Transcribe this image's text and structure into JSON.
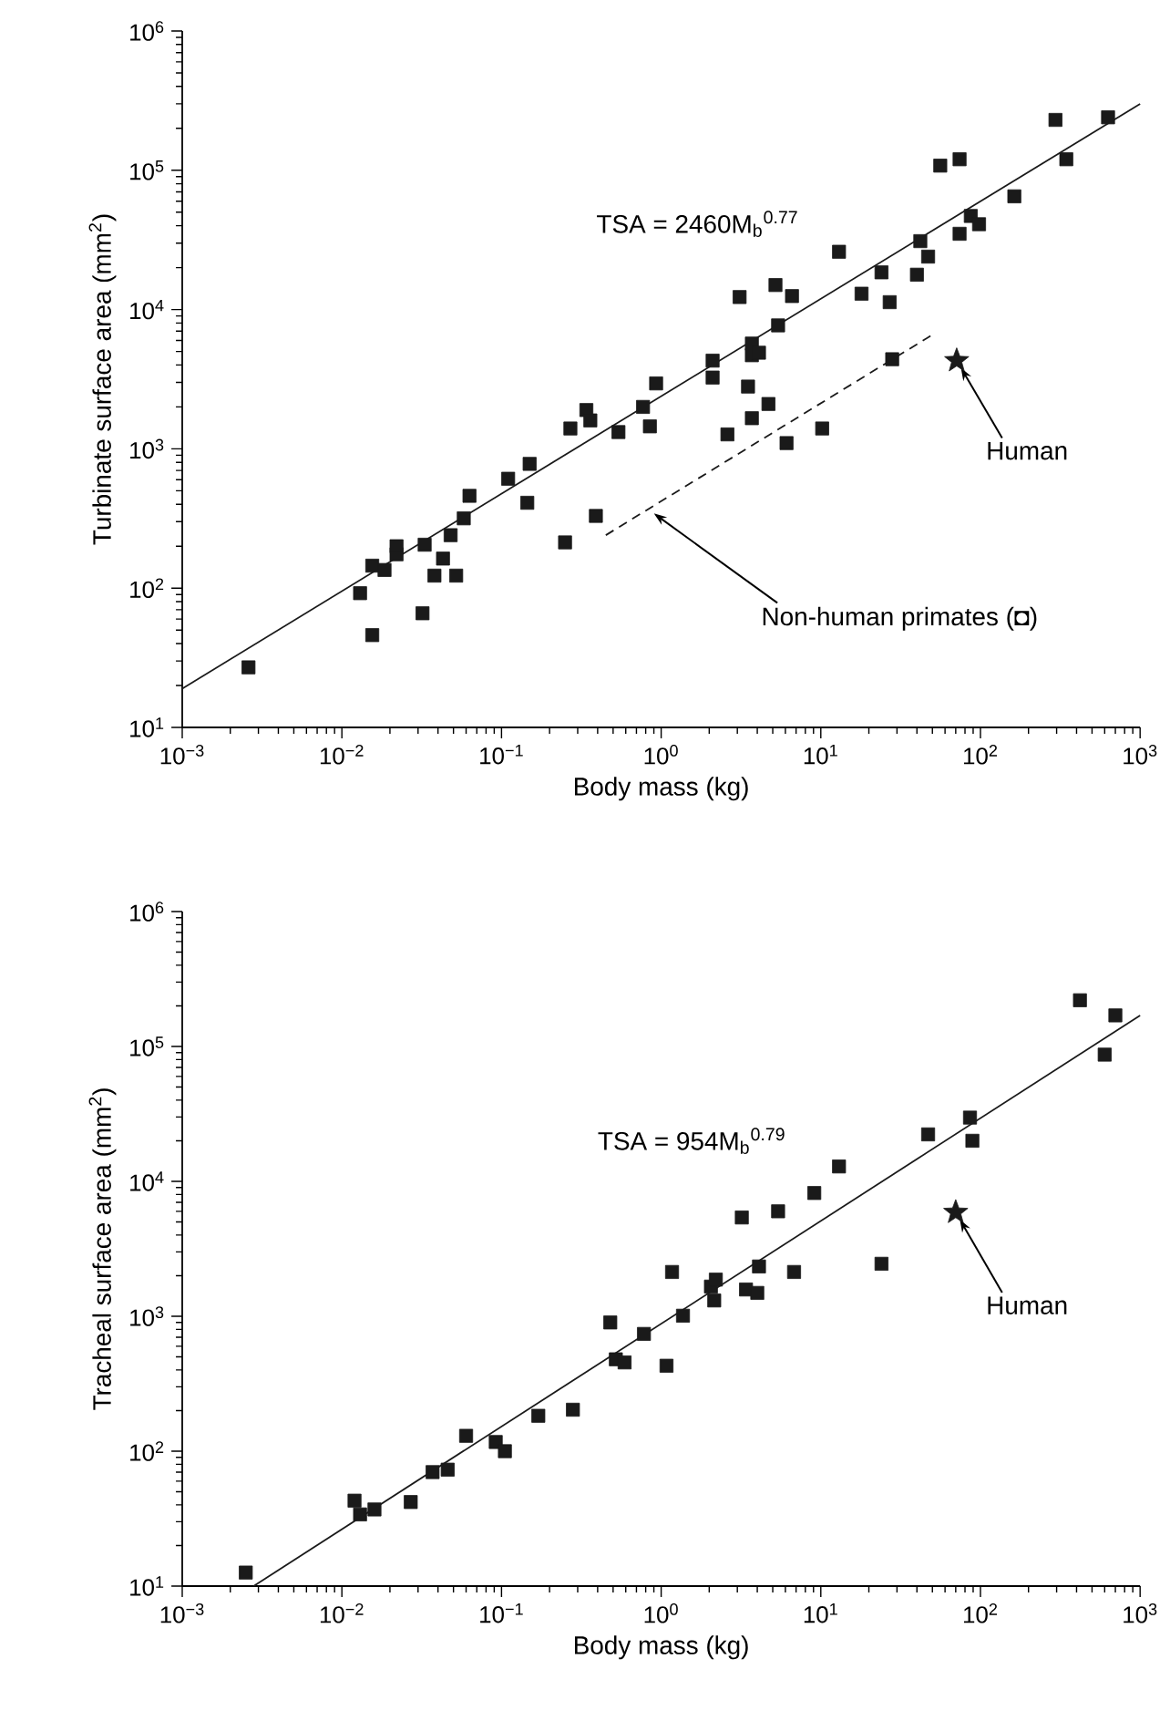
{
  "chart_data": [
    {
      "type": "scatter",
      "xlabel": "Body mass (kg)",
      "ylabel": "Turbinate surface area (mm$^{2}$)",
      "log": "xy",
      "xlim": [
        0.001,
        1000
      ],
      "ylim": [
        10,
        1000000
      ],
      "xticks": [
        {
          "value": 0.001,
          "label": "10$^{−3}$"
        },
        {
          "value": 0.01,
          "label": "10$^{−2}$"
        },
        {
          "value": 0.1,
          "label": "10$^{−1}$"
        },
        {
          "value": 1,
          "label": "10$^{0}$"
        },
        {
          "value": 10,
          "label": "10$^{1}$"
        },
        {
          "value": 100,
          "label": "10$^{2}$"
        },
        {
          "value": 1000,
          "label": "10$^{3}$"
        }
      ],
      "yticks": [
        {
          "value": 10,
          "label": "10$^{1}$"
        },
        {
          "value": 100,
          "label": "10$^{2}$"
        },
        {
          "value": 1000,
          "label": "10$^{3}$"
        },
        {
          "value": 10000,
          "label": "10$^{4}$"
        },
        {
          "value": 100000,
          "label": "10$^{5}$"
        },
        {
          "value": 1000000,
          "label": "10$^{6}$"
        }
      ],
      "series": [
        {
          "marker": "square",
          "color": "#1a1a1a",
          "x": [
            0.0026,
            0.013,
            0.0155,
            0.0155,
            0.0185,
            0.022,
            0.022,
            0.032,
            0.033,
            0.038,
            0.043,
            0.048,
            0.052,
            0.058,
            0.063,
            0.11,
            0.145,
            0.15,
            0.25,
            0.27,
            0.34,
            0.36,
            0.54,
            0.77,
            0.85,
            0.93,
            2.1,
            2.1,
            2.6,
            3.1,
            3.5,
            3.7,
            3.7,
            4.1,
            3.7,
            4.7,
            5.2,
            5.4,
            6.6,
            13,
            18,
            24,
            27,
            40,
            42,
            47,
            56,
            74,
            74,
            87,
            98,
            163,
            295,
            345,
            630
          ],
          "values": [
            27,
            92,
            46,
            145,
            135,
            175,
            200,
            66,
            205,
            123,
            163,
            240,
            123,
            317,
            460,
            610,
            410,
            780,
            213,
            1400,
            1900,
            1600,
            1320,
            2000,
            1450,
            2950,
            4300,
            3250,
            1270,
            12300,
            2800,
            5700,
            4700,
            4900,
            1660,
            2100,
            15000,
            7700,
            12500,
            26000,
            13000,
            18500,
            11300,
            17800,
            31000,
            24000,
            108000,
            120000,
            35000,
            47000,
            41000,
            65000,
            230000,
            120000,
            240000
          ]
        },
        {
          "marker": "square",
          "color": "#1a1a1a",
          "x": [
            0.39,
            6.1,
            10.2,
            28
          ],
          "values": [
            330,
            1100,
            1400,
            4400
          ]
        },
        {
          "marker": "star",
          "color": "#1a1a1a",
          "x": [
            71
          ],
          "values": [
            4300
          ]
        },
        {
          "type": "line",
          "line_style": "solid",
          "color": "#1a1a1a",
          "x": [
            0.001,
            1000
          ],
          "values": [
            19,
            300000
          ]
        },
        {
          "type": "line",
          "line_style": "dashed",
          "color": "#1a1a1a",
          "x": [
            0.45,
            49
          ],
          "values": [
            240,
            6500
          ]
        }
      ],
      "annotations": [
        "TSA = 2460M$_{b}$$^{0.77}$",
        {
          "text": "Human",
          "x": 71,
          "y": 4300
        },
        "Non-human primates (◘)"
      ]
    },
    {
      "type": "scatter",
      "xlabel": "Body mass (kg)",
      "ylabel": "Tracheal surface area (mm$^{2}$)",
      "log": "xy",
      "xlim": [
        0.001,
        1000
      ],
      "ylim": [
        10,
        1000000
      ],
      "xticks": [
        {
          "value": 0.001,
          "label": "10$^{−3}$"
        },
        {
          "value": 0.01,
          "label": "10$^{−2}$"
        },
        {
          "value": 0.1,
          "label": "10$^{−1}$"
        },
        {
          "value": 1,
          "label": "10$^{0}$"
        },
        {
          "value": 10,
          "label": "10$^{1}$"
        },
        {
          "value": 100,
          "label": "10$^{2}$"
        },
        {
          "value": 1000,
          "label": "10$^{3}$"
        }
      ],
      "yticks": [
        {
          "value": 10,
          "label": "10$^{1}$"
        },
        {
          "value": 100,
          "label": "10$^{2}$"
        },
        {
          "value": 1000,
          "label": "10$^{3}$"
        },
        {
          "value": 10000,
          "label": "10$^{4}$"
        },
        {
          "value": 100000,
          "label": "10$^{5}$"
        },
        {
          "value": 1000000,
          "label": "10$^{6}$"
        }
      ],
      "series": [
        {
          "marker": "square",
          "color": "#1a1a1a",
          "x": [
            0.0025,
            0.012,
            0.013,
            0.016,
            0.027,
            0.037,
            0.046,
            0.06,
            0.092,
            0.105,
            0.17,
            0.28,
            0.48,
            0.52,
            0.59,
            0.78,
            1.08,
            1.17,
            1.37,
            2.05,
            2.2,
            2.15,
            3.2,
            3.4,
            4.0,
            4.1,
            5.4,
            6.8,
            9.1,
            13,
            24,
            47,
            86,
            89,
            420,
            600,
            700
          ],
          "values": [
            12.6,
            43,
            34,
            37,
            42,
            70,
            73,
            130,
            117,
            100,
            183,
            203,
            900,
            480,
            455,
            740,
            430,
            2130,
            1010,
            1660,
            1870,
            1310,
            5400,
            1580,
            1490,
            2340,
            6000,
            2130,
            8200,
            12900,
            2450,
            22300,
            29700,
            20000,
            220000,
            87000,
            170000
          ]
        },
        {
          "marker": "star",
          "color": "#1a1a1a",
          "x": [
            70
          ],
          "values": [
            5900
          ]
        },
        {
          "type": "line",
          "line_style": "solid",
          "color": "#1a1a1a",
          "x": [
            0.0028,
            1000
          ],
          "values": [
            10,
            170000
          ]
        }
      ],
      "annotations": [
        "TSA = 954M$_{b}$$^{0.79}$",
        {
          "text": "Human",
          "x": 70,
          "y": 5900
        }
      ]
    }
  ]
}
